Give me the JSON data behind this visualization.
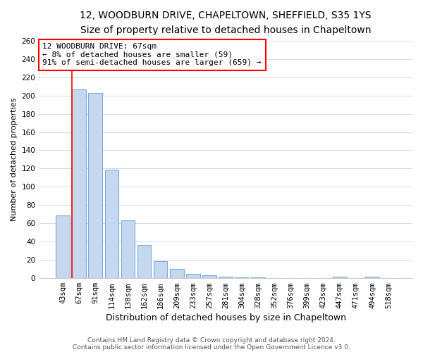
{
  "title": "12, WOODBURN DRIVE, CHAPELTOWN, SHEFFIELD, S35 1YS",
  "subtitle": "Size of property relative to detached houses in Chapeltown",
  "xlabel": "Distribution of detached houses by size in Chapeltown",
  "ylabel": "Number of detached properties",
  "categories": [
    "43sqm",
    "67sqm",
    "91sqm",
    "114sqm",
    "138sqm",
    "162sqm",
    "186sqm",
    "209sqm",
    "233sqm",
    "257sqm",
    "281sqm",
    "304sqm",
    "328sqm",
    "352sqm",
    "376sqm",
    "399sqm",
    "423sqm",
    "447sqm",
    "471sqm",
    "494sqm",
    "518sqm"
  ],
  "values": [
    69,
    207,
    203,
    119,
    63,
    36,
    19,
    10,
    5,
    3,
    2,
    1,
    1,
    0,
    0,
    0,
    0,
    2,
    0,
    2,
    0
  ],
  "bar_color": "#c5d8f0",
  "bar_edge_color": "#7aaedb",
  "redline_x": 1,
  "annotation_text_line1": "12 WOODBURN DRIVE: 67sqm",
  "annotation_text_line2": "← 8% of detached houses are smaller (59)",
  "annotation_text_line3": "91% of semi-detached houses are larger (659) →",
  "annotation_box_color": "white",
  "annotation_box_edge_color": "red",
  "footer_line1": "Contains HM Land Registry data © Crown copyright and database right 2024.",
  "footer_line2": "Contains public sector information licensed under the Open Government Licence v3.0.",
  "ylim": [
    0,
    260
  ],
  "yticks": [
    0,
    20,
    40,
    60,
    80,
    100,
    120,
    140,
    160,
    180,
    200,
    220,
    240,
    260
  ],
  "background_color": "#ffffff",
  "grid_color": "#d0dcea",
  "title_fontsize": 10,
  "subtitle_fontsize": 9,
  "xlabel_fontsize": 9,
  "ylabel_fontsize": 8,
  "tick_fontsize": 7.5,
  "annotation_fontsize": 8,
  "footer_fontsize": 6.5
}
